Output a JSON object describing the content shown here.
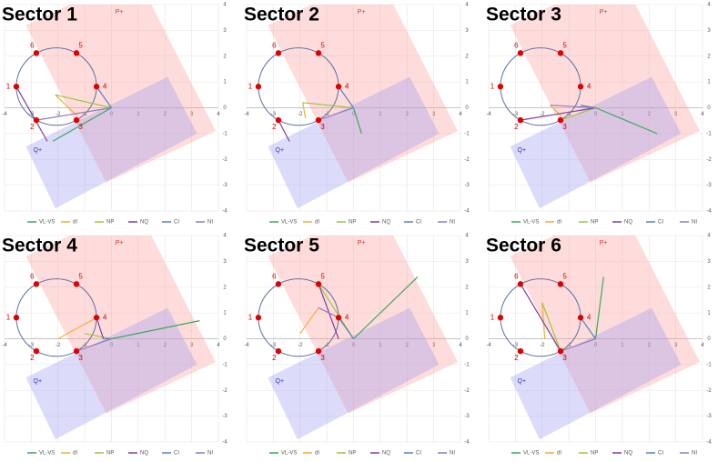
{
  "chart_data": [
    {
      "type": "line",
      "title": "Sector 1",
      "xlim": [
        -4,
        4
      ],
      "ylim": [
        -4,
        4
      ],
      "xticks": [
        -4,
        -3,
        -2,
        -1,
        0,
        1,
        2,
        3,
        4
      ],
      "yticks": [
        -4,
        -3,
        -2,
        -1,
        0,
        1,
        2,
        3,
        4
      ],
      "grid": true,
      "circle": {
        "cx": -2.06,
        "cy": 0.82,
        "r": 1.5,
        "color": "#5a6fa0"
      },
      "points": {
        "labels": [
          "1",
          "2",
          "3",
          "4",
          "5",
          "6"
        ],
        "x": [
          -3.56,
          -2.81,
          -1.31,
          -0.56,
          -1.31,
          -2.81
        ],
        "y": [
          0.82,
          -0.48,
          -0.48,
          0.82,
          2.12,
          2.12
        ],
        "color": "#e00000"
      },
      "regions": [
        {
          "label": "P+",
          "color": "#ff9a9a",
          "x": [
            -0.2,
            3.9,
            0.9,
            -3.2
          ],
          "y": [
            -2.9,
            -0.9,
            5.2,
            3.2
          ]
        },
        {
          "label": "Q+",
          "color": "#9a9af0",
          "x": [
            -3.2,
            2.1,
            3.2,
            -2.1
          ],
          "y": [
            -1.5,
            1.2,
            -1.0,
            -3.9
          ]
        }
      ],
      "series": [
        {
          "name": "VL-VS",
          "color": "#3aa85a",
          "x": [
            0,
            -2.2
          ],
          "values": [
            0,
            -1.3
          ]
        },
        {
          "name": "dI",
          "color": "#f0b030",
          "x": [
            -2.1,
            -1.3
          ],
          "values": [
            0.5,
            -0.3
          ]
        },
        {
          "name": "NP",
          "color": "#9ac83a",
          "x": [
            -2.1,
            0
          ],
          "values": [
            0.5,
            0
          ]
        },
        {
          "name": "NQ",
          "color": "#7b3fa0",
          "x": [
            -3.56,
            -2.4
          ],
          "values": [
            0.82,
            -1.3
          ]
        },
        {
          "name": "CI",
          "color": "#5b7fc4",
          "x": [
            -0.56,
            0
          ],
          "values": [
            0.82,
            0
          ]
        },
        {
          "name": "NI",
          "color": "#8e7cc3",
          "x": [
            -2.81,
            0
          ],
          "values": [
            -0.48,
            0
          ]
        }
      ]
    },
    {
      "type": "line",
      "title": "Sector 2",
      "xlim": [
        -4,
        4
      ],
      "ylim": [
        -4,
        4
      ],
      "xticks": [
        -4,
        -3,
        -2,
        -1,
        0,
        1,
        2,
        3,
        4
      ],
      "yticks": [
        -4,
        -3,
        -2,
        -1,
        0,
        1,
        2,
        3,
        4
      ],
      "grid": true,
      "circle": {
        "cx": -2.06,
        "cy": 0.82,
        "r": 1.5,
        "color": "#5a6fa0"
      },
      "points": {
        "labels": [
          "1",
          "2",
          "3",
          "4",
          "5",
          "6"
        ],
        "x": [
          -3.56,
          -2.81,
          -1.31,
          -0.56,
          -1.31,
          -2.81
        ],
        "y": [
          0.82,
          -0.48,
          -0.48,
          0.82,
          2.12,
          2.12
        ],
        "color": "#e00000"
      },
      "regions": [
        {
          "label": "P+",
          "color": "#ff9a9a",
          "x": [
            -0.2,
            3.9,
            0.9,
            -3.2
          ],
          "y": [
            -2.9,
            -0.9,
            5.2,
            3.2
          ]
        },
        {
          "label": "Q+",
          "color": "#9a9af0",
          "x": [
            -3.2,
            2.1,
            3.2,
            -2.1
          ],
          "y": [
            -1.5,
            1.2,
            -1.0,
            -3.9
          ]
        }
      ],
      "series": [
        {
          "name": "VL-VS",
          "color": "#3aa85a",
          "x": [
            0,
            0.3
          ],
          "values": [
            0,
            -1.0
          ]
        },
        {
          "name": "dI",
          "color": "#f0b030",
          "x": [
            -1.9,
            -1.8
          ],
          "values": [
            0.2,
            -0.4
          ]
        },
        {
          "name": "NP",
          "color": "#9ac83a",
          "x": [
            -1.9,
            0
          ],
          "values": [
            0.2,
            0
          ]
        },
        {
          "name": "NQ",
          "color": "#7b3fa0",
          "x": [
            -2.81,
            -2.4
          ],
          "values": [
            -0.48,
            -1.3
          ]
        },
        {
          "name": "CI",
          "color": "#5b7fc4",
          "x": [
            -0.56,
            0
          ],
          "values": [
            0.82,
            0
          ]
        },
        {
          "name": "NI",
          "color": "#8e7cc3",
          "x": [
            -1.31,
            0
          ],
          "values": [
            -0.48,
            0
          ]
        }
      ]
    },
    {
      "type": "line",
      "title": "Sector 3",
      "xlim": [
        -4,
        4
      ],
      "ylim": [
        -4,
        4
      ],
      "xticks": [
        -4,
        -3,
        -2,
        -1,
        0,
        1,
        2,
        3,
        4
      ],
      "yticks": [
        -4,
        -3,
        -2,
        -1,
        0,
        1,
        2,
        3,
        4
      ],
      "grid": true,
      "circle": {
        "cx": -2.06,
        "cy": 0.82,
        "r": 1.5,
        "color": "#5a6fa0"
      },
      "points": {
        "labels": [
          "1",
          "2",
          "3",
          "4",
          "5",
          "6"
        ],
        "x": [
          -3.56,
          -2.81,
          -1.31,
          -0.56,
          -1.31,
          -2.81
        ],
        "y": [
          0.82,
          -0.48,
          -0.48,
          0.82,
          2.12,
          2.12
        ],
        "color": "#e00000"
      },
      "regions": [
        {
          "label": "P+",
          "color": "#ff9a9a",
          "x": [
            -0.2,
            3.9,
            0.9,
            -3.2
          ],
          "y": [
            -2.9,
            -0.9,
            5.2,
            3.2
          ]
        },
        {
          "label": "Q+",
          "color": "#9a9af0",
          "x": [
            -3.2,
            2.1,
            3.2,
            -2.1
          ],
          "y": [
            -1.5,
            1.2,
            -1.0,
            -3.9
          ]
        }
      ],
      "series": [
        {
          "name": "VL-VS",
          "color": "#3aa85a",
          "x": [
            0,
            2.3
          ],
          "values": [
            0,
            -1.0
          ]
        },
        {
          "name": "dI",
          "color": "#f0b030",
          "x": [
            -1.7,
            -1.3
          ],
          "values": [
            0.1,
            -0.3
          ]
        },
        {
          "name": "NP",
          "color": "#9ac83a",
          "x": [
            -1.31,
            0
          ],
          "values": [
            -0.48,
            0
          ]
        },
        {
          "name": "NQ",
          "color": "#7b3fa0",
          "x": [
            -2.81,
            0
          ],
          "values": [
            -0.48,
            0
          ]
        },
        {
          "name": "CI",
          "color": "#5b7fc4",
          "x": [
            -0.56,
            0
          ],
          "values": [
            0.1,
            0
          ]
        },
        {
          "name": "NI",
          "color": "#8e7cc3",
          "x": [
            -1.7,
            0
          ],
          "values": [
            0.1,
            0
          ]
        }
      ]
    },
    {
      "type": "line",
      "title": "Sector 4",
      "xlim": [
        -4,
        4
      ],
      "ylim": [
        -4,
        4
      ],
      "xticks": [
        -4,
        -3,
        -2,
        -1,
        0,
        1,
        2,
        3,
        4
      ],
      "yticks": [
        -4,
        -3,
        -2,
        -1,
        0,
        1,
        2,
        3,
        4
      ],
      "grid": true,
      "circle": {
        "cx": -2.06,
        "cy": 0.82,
        "r": 1.5,
        "color": "#5a6fa0"
      },
      "points": {
        "labels": [
          "1",
          "2",
          "3",
          "4",
          "5",
          "6"
        ],
        "x": [
          -3.56,
          -2.81,
          -1.31,
          -0.56,
          -1.31,
          -2.81
        ],
        "y": [
          0.82,
          -0.48,
          -0.48,
          0.82,
          2.12,
          2.12
        ],
        "color": "#e00000"
      },
      "regions": [
        {
          "label": "P+",
          "color": "#ff9a9a",
          "x": [
            -0.2,
            3.9,
            0.9,
            -3.2
          ],
          "y": [
            -2.9,
            -0.9,
            5.2,
            3.2
          ]
        },
        {
          "label": "Q+",
          "color": "#9a9af0",
          "x": [
            -3.2,
            2.1,
            3.2,
            -2.1
          ],
          "y": [
            -1.5,
            1.2,
            -1.0,
            -3.9
          ]
        }
      ],
      "series": [
        {
          "name": "VL-VS",
          "color": "#3aa85a",
          "x": [
            0,
            3.3
          ],
          "values": [
            0,
            0.7
          ]
        },
        {
          "name": "dI",
          "color": "#f0b030",
          "x": [
            -2.0,
            -0.56
          ],
          "values": [
            0,
            0.82
          ]
        },
        {
          "name": "NP",
          "color": "#9ac83a",
          "x": [
            -1.0,
            0
          ],
          "values": [
            0.2,
            0
          ]
        },
        {
          "name": "NQ",
          "color": "#7b3fa0",
          "x": [
            -0.56,
            -0.3
          ],
          "values": [
            0.82,
            0
          ]
        },
        {
          "name": "CI",
          "color": "#5b7fc4",
          "x": [
            -0.3,
            0
          ],
          "values": [
            0,
            0
          ]
        },
        {
          "name": "NI",
          "color": "#8e7cc3",
          "x": [
            -1.31,
            0
          ],
          "values": [
            -0.48,
            0
          ]
        }
      ]
    },
    {
      "type": "line",
      "title": "Sector 5",
      "xlim": [
        -4,
        4
      ],
      "ylim": [
        -4,
        4
      ],
      "xticks": [
        -4,
        -3,
        -2,
        -1,
        0,
        1,
        2,
        3,
        4
      ],
      "yticks": [
        -4,
        -3,
        -2,
        -1,
        0,
        1,
        2,
        3,
        4
      ],
      "grid": true,
      "circle": {
        "cx": -2.06,
        "cy": 0.82,
        "r": 1.5,
        "color": "#5a6fa0"
      },
      "points": {
        "labels": [
          "1",
          "2",
          "3",
          "4",
          "5",
          "6"
        ],
        "x": [
          -3.56,
          -2.81,
          -1.31,
          -0.56,
          -1.31,
          -2.81
        ],
        "y": [
          0.82,
          -0.48,
          -0.48,
          0.82,
          2.12,
          2.12
        ],
        "color": "#e00000"
      },
      "regions": [
        {
          "label": "P+",
          "color": "#ff9a9a",
          "x": [
            -0.2,
            3.9,
            0.9,
            -3.2
          ],
          "y": [
            -2.9,
            -0.9,
            5.2,
            3.2
          ]
        },
        {
          "label": "Q+",
          "color": "#9a9af0",
          "x": [
            -3.2,
            2.1,
            3.2,
            -2.1
          ],
          "y": [
            -1.5,
            1.2,
            -1.0,
            -3.9
          ]
        }
      ],
      "series": [
        {
          "name": "VL-VS",
          "color": "#3aa85a",
          "x": [
            0,
            2.4
          ],
          "values": [
            0,
            2.4
          ]
        },
        {
          "name": "dI",
          "color": "#f0b030",
          "x": [
            -2.0,
            -1.31
          ],
          "values": [
            0.2,
            1.2
          ]
        },
        {
          "name": "NP",
          "color": "#9ac83a",
          "x": [
            -1.31,
            0
          ],
          "values": [
            2.12,
            0
          ]
        },
        {
          "name": "NQ",
          "color": "#7b3fa0",
          "x": [
            -1.31,
            -0.56
          ],
          "values": [
            2.12,
            0
          ]
        },
        {
          "name": "CI",
          "color": "#5b7fc4",
          "x": [
            -0.56,
            0
          ],
          "values": [
            0.82,
            0
          ]
        },
        {
          "name": "NI",
          "color": "#8e7cc3",
          "x": [
            -1.31,
            -0.56
          ],
          "values": [
            1.2,
            0.82
          ]
        }
      ]
    },
    {
      "type": "line",
      "title": "Sector 6",
      "xlim": [
        -4,
        4
      ],
      "ylim": [
        -4,
        4
      ],
      "xticks": [
        -4,
        -3,
        -2,
        -1,
        0,
        1,
        2,
        3,
        4
      ],
      "yticks": [
        -4,
        -3,
        -2,
        -1,
        0,
        1,
        2,
        3,
        4
      ],
      "grid": true,
      "circle": {
        "cx": -2.06,
        "cy": 0.82,
        "r": 1.5,
        "color": "#5a6fa0"
      },
      "points": {
        "labels": [
          "1",
          "2",
          "3",
          "4",
          "5",
          "6"
        ],
        "x": [
          -3.56,
          -2.81,
          -1.31,
          -0.56,
          -1.31,
          -2.81
        ],
        "y": [
          0.82,
          -0.48,
          -0.48,
          0.82,
          2.12,
          2.12
        ],
        "color": "#e00000"
      },
      "regions": [
        {
          "label": "P+",
          "color": "#ff9a9a",
          "x": [
            -0.2,
            3.9,
            0.9,
            -3.2
          ],
          "y": [
            -2.9,
            -0.9,
            5.2,
            3.2
          ]
        },
        {
          "label": "Q+",
          "color": "#9a9af0",
          "x": [
            -3.2,
            2.1,
            3.2,
            -2.1
          ],
          "y": [
            -1.5,
            1.2,
            -1.0,
            -3.9
          ]
        }
      ],
      "series": [
        {
          "name": "VL-VS",
          "color": "#3aa85a",
          "x": [
            0,
            0.3
          ],
          "values": [
            0,
            2.4
          ]
        },
        {
          "name": "dI",
          "color": "#f0b030",
          "x": [
            -1.9,
            -2.0
          ],
          "values": [
            0,
            1.4
          ]
        },
        {
          "name": "NP",
          "color": "#9ac83a",
          "x": [
            -2.0,
            -1.31
          ],
          "values": [
            1.4,
            -0.48
          ]
        },
        {
          "name": "NQ",
          "color": "#7b3fa0",
          "x": [
            -2.81,
            -1.31
          ],
          "values": [
            2.12,
            -0.48
          ]
        },
        {
          "name": "CI",
          "color": "#5b7fc4",
          "x": [
            -0.56,
            0
          ],
          "values": [
            0.82,
            0
          ]
        },
        {
          "name": "NI",
          "color": "#8e7cc3",
          "x": [
            -1.31,
            0
          ],
          "values": [
            -0.48,
            0
          ]
        }
      ]
    }
  ]
}
